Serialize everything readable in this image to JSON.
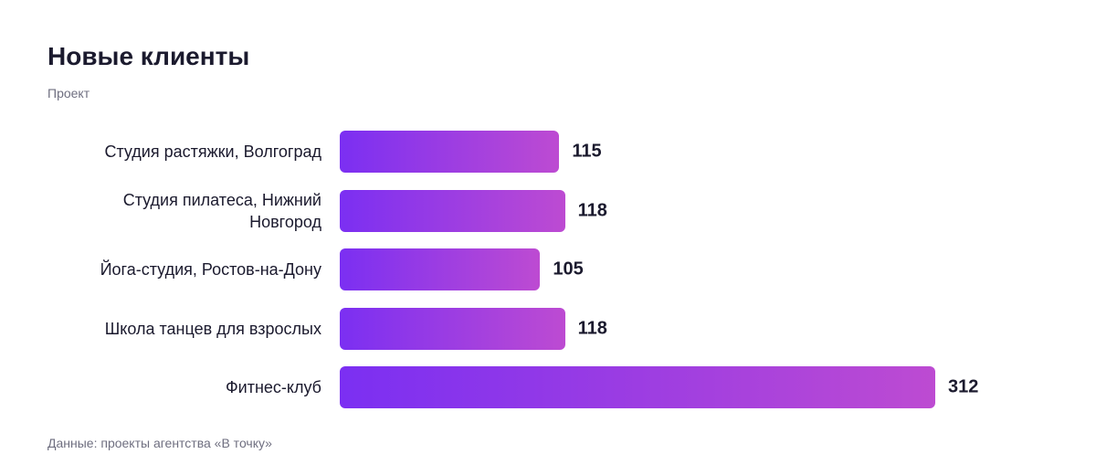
{
  "chart_data": {
    "type": "bar",
    "orientation": "horizontal",
    "title": "Новые клиенты",
    "subtitle": "Проект",
    "categories": [
      "Студия растяжки, Волгоград",
      "Студия пилатеса, Нижний Новгород",
      "Йога-студия, Ростов-на-Дону",
      "Школа танцев для взрослых",
      "Фитнес-клуб"
    ],
    "values": [
      115,
      118,
      105,
      118,
      312
    ],
    "colors": [
      "#7b2ff2",
      "#bd4bd2"
    ],
    "source": "Данные: проекты агентства «В точку»"
  }
}
